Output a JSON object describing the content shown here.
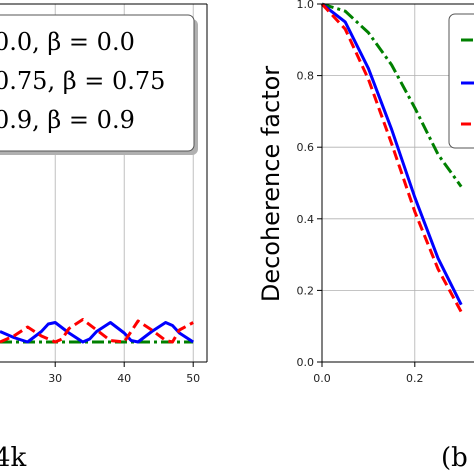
{
  "chart_data": [
    {
      "type": "line",
      "panel_label": "4k",
      "xlim": [
        22,
        52
      ],
      "xticks": [
        "30",
        "40",
        "50"
      ],
      "xtick_values": [
        30,
        40,
        50
      ],
      "grid": true,
      "legend_placement": "top",
      "series": [
        {
          "label": "0.0, β = 0.0",
          "color": "#008000",
          "style": "dashdot",
          "x": [
            22,
            50
          ],
          "y": [
            0.0,
            0.0
          ]
        },
        {
          "label": "0.75, β = 0.75",
          "color": "#0000ff",
          "style": "solid",
          "x": [
            22,
            24,
            26,
            28,
            29,
            30,
            32,
            34,
            35,
            36,
            38,
            40,
            41,
            42,
            44,
            46,
            47,
            48,
            50
          ],
          "y": [
            0.35,
            0.15,
            0.0,
            0.35,
            0.6,
            0.65,
            0.3,
            0.0,
            0.1,
            0.35,
            0.65,
            0.3,
            0.05,
            0.0,
            0.35,
            0.65,
            0.55,
            0.3,
            0.0
          ]
        },
        {
          "label": "0.9, β = 0.9",
          "color": "#ff0000",
          "style": "dashed",
          "x": [
            22,
            24,
            26,
            28,
            30,
            31,
            32,
            34,
            36,
            38,
            40,
            41,
            42,
            44,
            46,
            47,
            48,
            50
          ],
          "y": [
            0.0,
            0.2,
            0.5,
            0.2,
            0.0,
            0.1,
            0.45,
            0.75,
            0.4,
            0.05,
            0.0,
            0.35,
            0.7,
            0.4,
            0.05,
            0.0,
            0.4,
            0.65
          ]
        }
      ]
    },
    {
      "type": "line",
      "panel_label": "(b",
      "ylabel": "Decoherence factor",
      "ylim": [
        0.0,
        1.0
      ],
      "yticks": [
        "0.0",
        "0.2",
        "0.4",
        "0.6",
        "0.8",
        "1.0"
      ],
      "ytick_values": [
        0.0,
        0.2,
        0.4,
        0.6,
        0.8,
        1.0
      ],
      "xlim": [
        0.0,
        0.3
      ],
      "xticks": [
        "0.0",
        "0.2"
      ],
      "xtick_values": [
        0.0,
        0.2
      ],
      "grid": true,
      "legend_placement": "right",
      "series": [
        {
          "color": "#008000",
          "style": "dashdot",
          "x": [
            0.0,
            0.05,
            0.1,
            0.15,
            0.2,
            0.25,
            0.3
          ],
          "y": [
            1.0,
            0.98,
            0.92,
            0.83,
            0.71,
            0.58,
            0.49
          ]
        },
        {
          "color": "#0000ff",
          "style": "solid",
          "x": [
            0.0,
            0.05,
            0.1,
            0.15,
            0.2,
            0.25,
            0.3
          ],
          "y": [
            1.0,
            0.95,
            0.82,
            0.65,
            0.46,
            0.29,
            0.16
          ]
        },
        {
          "color": "#ff0000",
          "style": "dashed",
          "x": [
            0.0,
            0.05,
            0.1,
            0.15,
            0.2,
            0.25,
            0.3
          ],
          "y": [
            1.0,
            0.93,
            0.79,
            0.61,
            0.42,
            0.26,
            0.14
          ]
        }
      ]
    }
  ]
}
